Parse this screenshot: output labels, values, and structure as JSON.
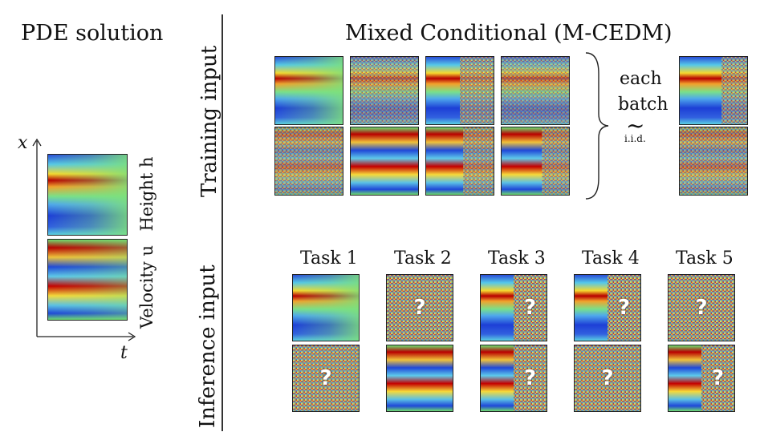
{
  "left": {
    "title": "PDE solution",
    "axis_x": "x",
    "axis_t": "t",
    "height_label": "Height h",
    "velocity_label": "Velocity u"
  },
  "right": {
    "title": "Mixed Conditional (M-CEDM)",
    "training_label": "Training input",
    "inference_label": "Inference input",
    "each": "each",
    "batch": "batch",
    "tilde": "~",
    "iid": "i.i.d.",
    "tasks": [
      "Task 1",
      "Task 2",
      "Task 3",
      "Task 4",
      "Task 5"
    ],
    "unknown": "?"
  },
  "colors": {
    "red": "#b40000",
    "blue": "#1d3fd6",
    "cyan": "#5fd0e6",
    "green": "#6ee07a",
    "yellow": "#f4d630"
  }
}
